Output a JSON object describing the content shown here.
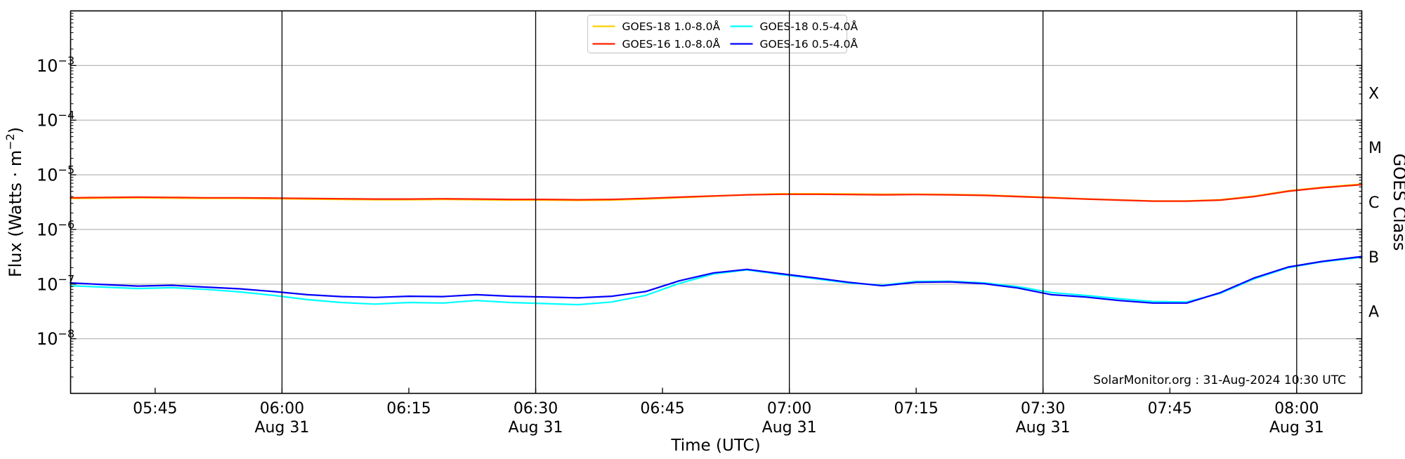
{
  "figure": {
    "attribution": "SolarMonitor.org : 31-Aug-2024 10:30 UTC",
    "background": "#ffffff"
  },
  "chart_data": {
    "type": "line",
    "title": "",
    "xlabel": "Time (UTC)",
    "ylabel_parts": {
      "pre": "Flux (Watts · m",
      "sup": "−2",
      "post": ")"
    },
    "ylabel_right": "GOES Class",
    "yscale": "log",
    "x_unit": "minutes_since_00:00_UTC_2024-08-31",
    "xlim": [
      335,
      487.7
    ],
    "ylim": [
      1e-09,
      0.01
    ],
    "grid_x_minutes": [
      360,
      390,
      420,
      450,
      480
    ],
    "grid_y_values": [
      0.001,
      0.0001,
      1e-05,
      1e-06,
      1e-07,
      1e-08
    ],
    "grid_x_color": "#000000",
    "grid_y_color": "#b0b0b0",
    "x_ticks": [
      {
        "t": 345,
        "time": "05:45",
        "date": ""
      },
      {
        "t": 360,
        "time": "06:00",
        "date": "Aug 31"
      },
      {
        "t": 375,
        "time": "06:15",
        "date": ""
      },
      {
        "t": 390,
        "time": "06:30",
        "date": "Aug 31"
      },
      {
        "t": 405,
        "time": "06:45",
        "date": ""
      },
      {
        "t": 420,
        "time": "07:00",
        "date": "Aug 31"
      },
      {
        "t": 435,
        "time": "07:15",
        "date": ""
      },
      {
        "t": 450,
        "time": "07:30",
        "date": "Aug 31"
      },
      {
        "t": 465,
        "time": "07:45",
        "date": ""
      },
      {
        "t": 480,
        "time": "08:00",
        "date": "Aug 31"
      }
    ],
    "y_ticks": [
      {
        "v": 0.001,
        "base": "10",
        "exp": "−3"
      },
      {
        "v": 0.0001,
        "base": "10",
        "exp": "−4"
      },
      {
        "v": 1e-05,
        "base": "10",
        "exp": "−5"
      },
      {
        "v": 1e-06,
        "base": "10",
        "exp": "−6"
      },
      {
        "v": 1e-07,
        "base": "10",
        "exp": "−7"
      },
      {
        "v": 1e-08,
        "base": "10",
        "exp": "−8"
      }
    ],
    "goes_classes": [
      {
        "label": "X",
        "v": 0.0003162
      },
      {
        "label": "M",
        "v": 3.162e-05
      },
      {
        "label": "C",
        "v": 3.162e-06
      },
      {
        "label": "B",
        "v": 3.162e-07
      },
      {
        "label": "A",
        "v": 3.162e-08
      }
    ],
    "legend": {
      "position": "top-center",
      "entries": [
        {
          "label": "GOES-18 1.0-8.0Å",
          "color": "#ffcf00"
        },
        {
          "label": "GOES-16 1.0-8.0Å",
          "color": "#ff2200"
        },
        {
          "label": "GOES-18 0.5-4.0Å",
          "color": "#00ffff"
        },
        {
          "label": "GOES-16 0.5-4.0Å",
          "color": "#0000ff"
        }
      ]
    },
    "x": [
      335,
      339,
      343,
      347,
      351,
      355,
      359,
      363,
      367,
      371,
      375,
      379,
      383,
      387,
      391,
      395,
      399,
      403,
      407,
      411,
      415,
      419,
      423,
      427,
      431,
      435,
      439,
      443,
      447,
      451,
      455,
      459,
      463,
      467,
      471,
      475,
      479,
      483,
      487.7
    ],
    "series": [
      {
        "name": "GOES-18 1.0-8.0Å",
        "color": "#ffcf00",
        "values": [
          3.7e-06,
          3.74e-06,
          3.79e-06,
          3.74e-06,
          3.7e-06,
          3.7e-06,
          3.65e-06,
          3.6e-06,
          3.55e-06,
          3.5e-06,
          3.5e-06,
          3.55e-06,
          3.5e-06,
          3.45e-06,
          3.45e-06,
          3.4e-06,
          3.45e-06,
          3.6e-06,
          3.82e-06,
          4.05e-06,
          4.32e-06,
          4.5e-06,
          4.5e-06,
          4.45e-06,
          4.4e-06,
          4.42e-06,
          4.36e-06,
          4.26e-06,
          4.05e-06,
          3.85e-06,
          3.63e-06,
          3.47e-06,
          3.33e-06,
          3.32e-06,
          3.5e-06,
          4.08e-06,
          5.1e-06,
          5.92e-06,
          6.75e-06
        ]
      },
      {
        "name": "GOES-16 1.0-8.0Å",
        "color": "#ff2200",
        "values": [
          3.8e-06,
          3.85e-06,
          3.9e-06,
          3.85e-06,
          3.8e-06,
          3.8e-06,
          3.75e-06,
          3.7e-06,
          3.65e-06,
          3.6e-06,
          3.6e-06,
          3.65e-06,
          3.6e-06,
          3.55e-06,
          3.55e-06,
          3.5e-06,
          3.55e-06,
          3.7e-06,
          3.9e-06,
          4.1e-06,
          4.3e-06,
          4.4e-06,
          4.4e-06,
          4.35e-06,
          4.3e-06,
          4.35e-06,
          4.3e-06,
          4.2e-06,
          4e-06,
          3.8e-06,
          3.6e-06,
          3.45e-06,
          3.3e-06,
          3.3e-06,
          3.45e-06,
          4e-06,
          5e-06,
          5.8e-06,
          6.6e-06
        ]
      },
      {
        "name": "GOES-18 0.5-4.0Å",
        "color": "#00ffff",
        "values": [
          9.3e-08,
          8.8e-08,
          8.3e-08,
          8.6e-08,
          8e-08,
          7.2e-08,
          6.2e-08,
          5.2e-08,
          4.6e-08,
          4.3e-08,
          4.6e-08,
          4.5e-08,
          5e-08,
          4.6e-08,
          4.4e-08,
          4.2e-08,
          4.7e-08,
          6.2e-08,
          1.03e-07,
          1.53e-07,
          1.82e-07,
          1.5e-07,
          1.26e-07,
          1.05e-07,
          9.5e-08,
          1.12e-07,
          1.13e-07,
          1.05e-07,
          9e-08,
          7e-08,
          6.2e-08,
          5.4e-08,
          4.8e-08,
          4.7e-08,
          6.8e-08,
          1.25e-07,
          2e-07,
          2.55e-07,
          3.1e-07
        ]
      },
      {
        "name": "GOES-16 0.5-4.0Å",
        "color": "#0000ff",
        "values": [
          1.05e-07,
          9.8e-08,
          9.2e-08,
          9.5e-08,
          8.8e-08,
          8.2e-08,
          7.3e-08,
          6.4e-08,
          5.9e-08,
          5.7e-08,
          6e-08,
          5.9e-08,
          6.4e-08,
          6e-08,
          5.8e-08,
          5.6e-08,
          6e-08,
          7.3e-08,
          1.15e-07,
          1.6e-07,
          1.86e-07,
          1.55e-07,
          1.3e-07,
          1.08e-07,
          9.3e-08,
          1.08e-07,
          1.1e-07,
          1.02e-07,
          8.5e-08,
          6.4e-08,
          5.8e-08,
          5e-08,
          4.5e-08,
          4.5e-08,
          7e-08,
          1.3e-07,
          2.05e-07,
          2.6e-07,
          3.2e-07
        ]
      }
    ]
  }
}
